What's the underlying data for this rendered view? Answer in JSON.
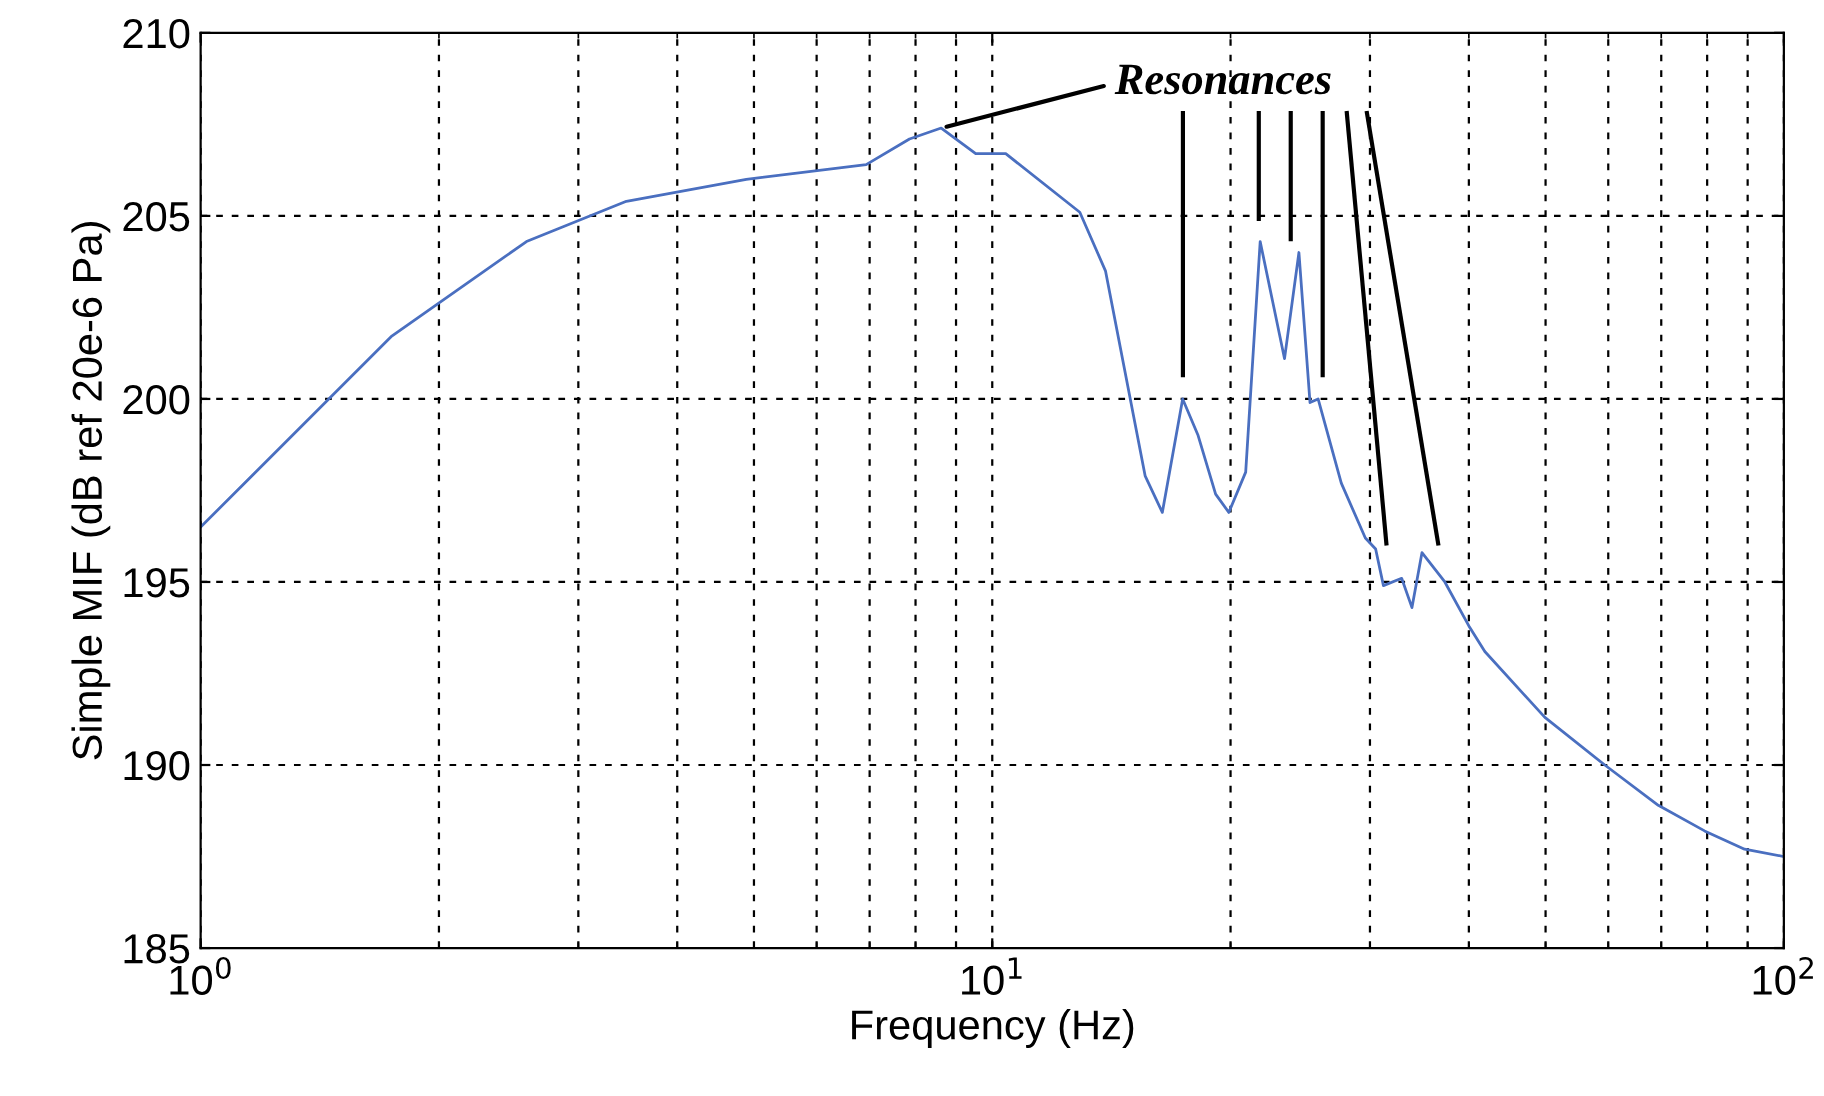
{
  "chart_data": {
    "type": "line",
    "xlabel": "Frequency (Hz)",
    "ylabel": "Simple MIF (dB ref 20e-6 Pa)",
    "log": "x",
    "grid": true,
    "marker": "none",
    "line_style": "solid",
    "xlim": [
      1,
      100
    ],
    "xticks": [
      {
        "value": 1,
        "label": "10$^{0}$"
      },
      {
        "value": 10,
        "label": "10$^{1}$"
      },
      {
        "value": 100,
        "label": "10$^{2}$"
      }
    ],
    "ylim": [
      185,
      210
    ],
    "yticks": [
      185,
      190,
      195,
      200,
      205,
      210
    ],
    "series": [
      {
        "color": "#4a6fc0",
        "x": [
          1,
          1.74,
          2.58,
          3.45,
          4.89,
          6.93,
          7.86,
          8.62,
          9.53,
          10.4,
          12.9,
          13.9,
          15.6,
          16.4,
          17.4,
          18.2,
          19.15,
          19.9,
          20.9,
          21.8,
          23.4,
          24.4,
          25.2,
          25.8,
          27.6,
          29.6,
          30.5,
          31.2,
          32.9,
          33.9,
          34.9,
          37.3,
          40.0,
          41.9,
          49.9,
          59.4,
          69.4,
          79.4,
          89.2,
          100
        ],
        "values": [
          196.5,
          201.7,
          204.3,
          205.4,
          206.0,
          206.4,
          207.1,
          207.4,
          206.7,
          206.7,
          205.1,
          203.5,
          197.9,
          196.9,
          200.0,
          199.0,
          197.4,
          196.9,
          198.0,
          204.3,
          201.1,
          204.0,
          199.9,
          200.0,
          197.7,
          196.2,
          195.9,
          194.9,
          195.1,
          194.3,
          195.8,
          195.0,
          193.8,
          193.1,
          191.3,
          190.0,
          188.9,
          188.2,
          187.7,
          187.5
        ]
      }
    ],
    "annotations": [
      {
        "text": "Resonances",
        "x": 8.62,
        "y": 207.4
      }
    ]
  }
}
